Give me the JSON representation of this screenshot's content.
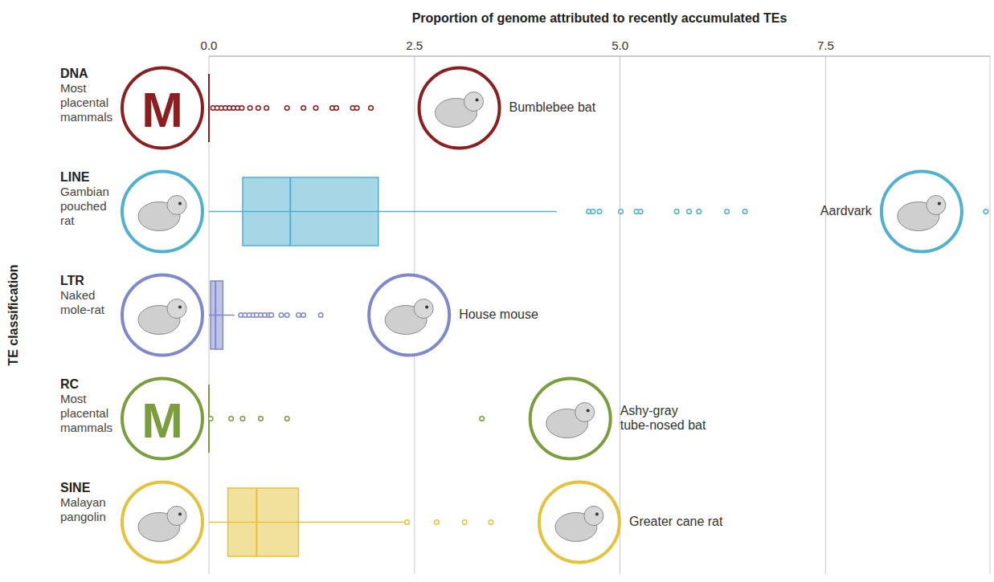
{
  "chart_data": {
    "type": "boxplot",
    "orientation": "horizontal",
    "x_label": "Proportion of genome attributed to recently accumulated TEs",
    "y_label": "TE classification",
    "xlim": [
      0,
      9.5
    ],
    "xticks": [
      {
        "value": 0,
        "label": "0.0"
      },
      2.5,
      {
        "value": 5,
        "label": "5.0"
      },
      7.5
    ],
    "grid": true,
    "series": [
      {
        "name": "DNA",
        "color": "#8b1e1e",
        "min_label": "Most placental mammals",
        "min_icon_text": "M",
        "max_label": "Bumblebee bat",
        "whisker_low": 0,
        "q1": 0,
        "median": 0,
        "q3": 0,
        "whisker_high": 0,
        "outliers": [
          0.05,
          0.1,
          0.15,
          0.2,
          0.25,
          0.3,
          0.35,
          0.4,
          0.5,
          0.6,
          0.7,
          0.95,
          1.15,
          1.3,
          1.5,
          1.55,
          1.75,
          1.8,
          1.97
        ]
      },
      {
        "name": "LINE",
        "color": "#4fb0cf",
        "min_label": "Gambian pouched rat",
        "max_label": "Aardvark",
        "whisker_low": 0,
        "q1": 0.41,
        "median": 0.99,
        "q3": 2.06,
        "whisker_high": 4.23,
        "outliers": [
          4.62,
          4.67,
          4.75,
          5.01,
          5.2,
          5.25,
          5.69,
          5.84,
          5.96,
          6.3,
          6.52,
          9.45
        ]
      },
      {
        "name": "LTR",
        "color": "#8088cc",
        "min_label": "Naked mole-rat",
        "max_label": "House mouse",
        "whisker_low": 0,
        "q1": 0.02,
        "median": 0.08,
        "q3": 0.17,
        "whisker_high": 0.31,
        "outliers": [
          0.39,
          0.44,
          0.49,
          0.54,
          0.58,
          0.63,
          0.68,
          0.73,
          0.76,
          0.88,
          0.95,
          1.09,
          1.15,
          1.36
        ]
      },
      {
        "name": "RC",
        "color": "#7a9e3c",
        "min_label": "Most placental mammals",
        "min_icon_text": "M",
        "max_label": "Ashy-gray tube-nosed bat",
        "whisker_low": 0,
        "q1": 0,
        "median": 0,
        "q3": 0,
        "whisker_high": 0,
        "outliers": [
          0.02,
          0.27,
          0.41,
          0.63,
          0.95,
          3.32
        ]
      },
      {
        "name": "SINE",
        "color": "#e5c23b",
        "min_label": "Malayan pangolin",
        "max_label": "Greater cane rat",
        "whisker_low": 0,
        "q1": 0.23,
        "median": 0.58,
        "q3": 1.09,
        "whisker_high": 2.38,
        "outliers": [
          2.41,
          2.77,
          3.11,
          3.43
        ]
      }
    ]
  }
}
